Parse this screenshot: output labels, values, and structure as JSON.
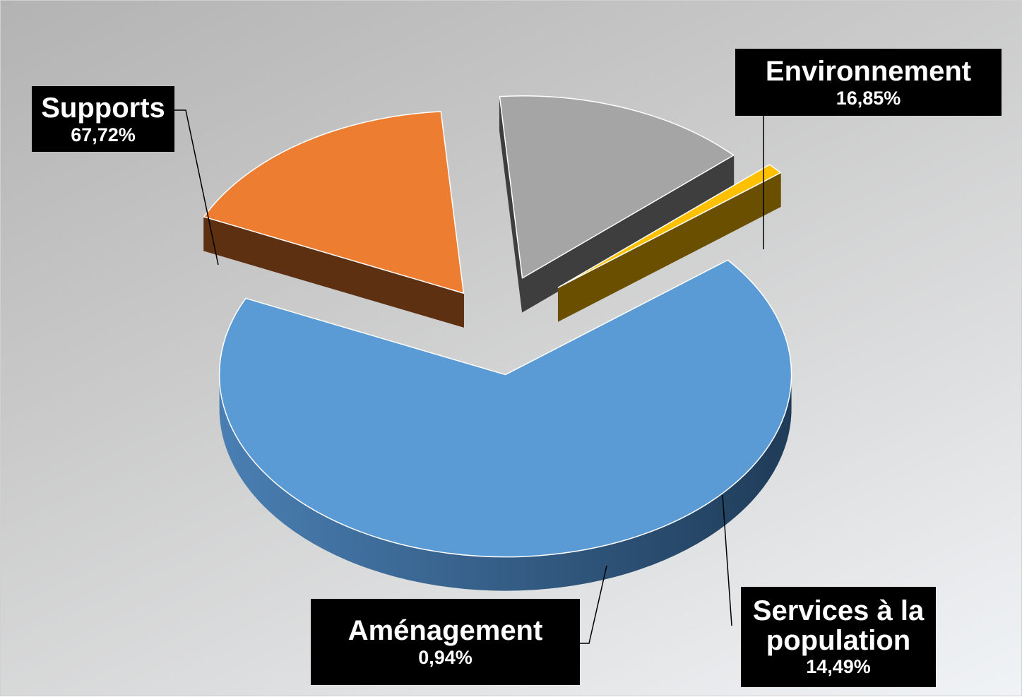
{
  "chart_data": {
    "type": "pie",
    "title": "",
    "slices": [
      {
        "label": "Supports",
        "value": 67.72,
        "value_text": "67,72%",
        "color": "#5b9bd5",
        "side_color": "#3d6d98"
      },
      {
        "label": "Environnement",
        "value": 16.85,
        "value_text": "16,85%",
        "color": "#ed7d31",
        "side_color": "#5e3012"
      },
      {
        "label": "Services à la population",
        "value": 14.49,
        "value_text": "14,49%",
        "color": "#a5a5a5",
        "side_color": "#3e3e3e"
      },
      {
        "label": "Aménagement",
        "value": 0.94,
        "value_text": "0,94%",
        "color": "#ffc000",
        "side_color": "#6b4f00"
      }
    ],
    "exploded": true,
    "three_d": true,
    "legend": "none",
    "data_labels": "callouts"
  }
}
